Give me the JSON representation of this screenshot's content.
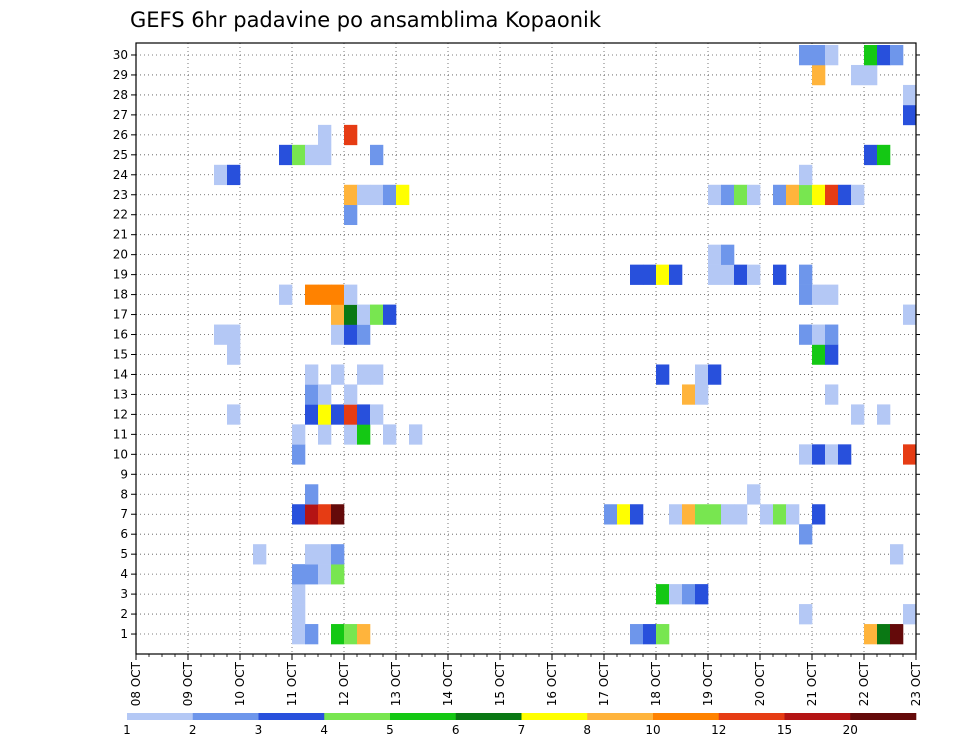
{
  "chart_data": {
    "type": "heatmap",
    "title": "GEFS 6hr padavine po ansamblima Kopaonik",
    "x_labels": [
      "08 OCT",
      "09 OCT",
      "10 OCT",
      "11 OCT",
      "12 OCT",
      "13 OCT",
      "14 OCT",
      "15 OCT",
      "16 OCT",
      "17 OCT",
      "18 OCT",
      "19 OCT",
      "20 OCT",
      "21 OCT",
      "22 OCT",
      "23 OCT"
    ],
    "x_range_hours": [
      0,
      360
    ],
    "step_hours": 6,
    "y_labels": [
      "1",
      "2",
      "3",
      "4",
      "5",
      "6",
      "7",
      "8",
      "9",
      "10",
      "11",
      "12",
      "13",
      "14",
      "15",
      "16",
      "17",
      "18",
      "19",
      "20",
      "21",
      "22",
      "23",
      "24",
      "25",
      "26",
      "27",
      "28",
      "29",
      "30"
    ],
    "colorbar": {
      "ticks": [
        "1",
        "2",
        "3",
        "4",
        "5",
        "6",
        "7",
        "8",
        "10",
        "12",
        "15",
        "20"
      ],
      "colors": [
        "#b4c8f5",
        "#6e96eb",
        "#2850dc",
        "#78e650",
        "#14c814",
        "#0a7814",
        "#ffff00",
        "#ffb43c",
        "#ff8200",
        "#e63c14",
        "#b41414",
        "#640a0a"
      ]
    },
    "levels_meaning": "level index 1..12 maps to colorbar colors",
    "cells": [
      [
        12,
        1,
        1
      ],
      [
        13,
        1,
        2
      ],
      [
        15,
        1,
        5
      ],
      [
        16,
        1,
        4
      ],
      [
        17,
        1,
        8
      ],
      [
        38,
        1,
        2
      ],
      [
        39,
        1,
        3
      ],
      [
        40,
        1,
        4
      ],
      [
        56,
        1,
        8
      ],
      [
        57,
        1,
        6
      ],
      [
        58,
        1,
        12
      ],
      [
        12,
        2,
        1
      ],
      [
        51,
        2,
        1
      ],
      [
        59,
        2,
        1
      ],
      [
        40,
        3,
        5
      ],
      [
        41,
        3,
        1
      ],
      [
        42,
        3,
        2
      ],
      [
        43,
        3,
        3
      ],
      [
        12,
        3,
        1
      ],
      [
        12,
        4,
        2
      ],
      [
        13,
        4,
        2
      ],
      [
        14,
        4,
        1
      ],
      [
        15,
        4,
        4
      ],
      [
        9,
        5,
        1
      ],
      [
        13,
        5,
        1
      ],
      [
        14,
        5,
        1
      ],
      [
        15,
        5,
        2
      ],
      [
        58,
        5,
        1
      ],
      [
        51,
        6,
        2
      ],
      [
        12,
        7,
        3
      ],
      [
        13,
        7,
        11
      ],
      [
        14,
        7,
        10
      ],
      [
        15,
        7,
        12
      ],
      [
        36,
        7,
        2
      ],
      [
        37,
        7,
        7
      ],
      [
        38,
        7,
        3
      ],
      [
        41,
        7,
        1
      ],
      [
        42,
        7,
        8
      ],
      [
        43,
        7,
        4
      ],
      [
        44,
        7,
        4
      ],
      [
        45,
        7,
        1
      ],
      [
        46,
        7,
        1
      ],
      [
        48,
        7,
        1
      ],
      [
        49,
        7,
        4
      ],
      [
        50,
        7,
        1
      ],
      [
        52,
        7,
        3
      ],
      [
        13,
        8,
        2
      ],
      [
        47,
        8,
        1
      ],
      [
        12,
        10,
        2
      ],
      [
        51,
        10,
        1
      ],
      [
        52,
        10,
        3
      ],
      [
        53,
        10,
        1
      ],
      [
        54,
        10,
        3
      ],
      [
        59,
        10,
        10
      ],
      [
        12,
        11,
        1
      ],
      [
        14,
        11,
        1
      ],
      [
        16,
        11,
        1
      ],
      [
        17,
        11,
        5
      ],
      [
        19,
        11,
        1
      ],
      [
        21,
        11,
        1
      ],
      [
        7,
        12,
        1
      ],
      [
        13,
        12,
        3
      ],
      [
        14,
        12,
        7
      ],
      [
        15,
        12,
        3
      ],
      [
        16,
        12,
        10
      ],
      [
        17,
        12,
        3
      ],
      [
        18,
        12,
        1
      ],
      [
        55,
        12,
        1
      ],
      [
        57,
        12,
        1
      ],
      [
        13,
        13,
        2
      ],
      [
        14,
        13,
        1
      ],
      [
        16,
        13,
        1
      ],
      [
        42,
        13,
        8
      ],
      [
        43,
        13,
        1
      ],
      [
        53,
        13,
        1
      ],
      [
        13,
        14,
        1
      ],
      [
        15,
        14,
        1
      ],
      [
        17,
        14,
        1
      ],
      [
        18,
        14,
        1
      ],
      [
        40,
        14,
        3
      ],
      [
        43,
        14,
        1
      ],
      [
        44,
        14,
        3
      ],
      [
        7,
        15,
        1
      ],
      [
        52,
        15,
        5
      ],
      [
        53,
        15,
        3
      ],
      [
        6,
        16,
        1
      ],
      [
        7,
        16,
        1
      ],
      [
        15,
        16,
        1
      ],
      [
        16,
        16,
        3
      ],
      [
        17,
        16,
        2
      ],
      [
        51,
        16,
        2
      ],
      [
        52,
        16,
        1
      ],
      [
        53,
        16,
        2
      ],
      [
        15,
        17,
        8
      ],
      [
        16,
        17,
        6
      ],
      [
        17,
        17,
        1
      ],
      [
        18,
        17,
        4
      ],
      [
        19,
        17,
        3
      ],
      [
        59,
        17,
        1
      ],
      [
        11,
        18,
        1
      ],
      [
        13,
        18,
        9
      ],
      [
        14,
        18,
        9
      ],
      [
        15,
        18,
        9
      ],
      [
        16,
        18,
        1
      ],
      [
        51,
        18,
        2
      ],
      [
        52,
        18,
        1
      ],
      [
        53,
        18,
        1
      ],
      [
        38,
        19,
        3
      ],
      [
        39,
        19,
        3
      ],
      [
        40,
        19,
        7
      ],
      [
        41,
        19,
        3
      ],
      [
        44,
        19,
        1
      ],
      [
        45,
        19,
        1
      ],
      [
        46,
        19,
        3
      ],
      [
        47,
        19,
        1
      ],
      [
        49,
        19,
        3
      ],
      [
        51,
        19,
        2
      ],
      [
        44,
        20,
        1
      ],
      [
        45,
        20,
        2
      ],
      [
        16,
        22,
        2
      ],
      [
        16,
        23,
        8
      ],
      [
        17,
        23,
        1
      ],
      [
        18,
        23,
        1
      ],
      [
        19,
        23,
        2
      ],
      [
        20,
        23,
        7
      ],
      [
        44,
        23,
        1
      ],
      [
        45,
        23,
        2
      ],
      [
        46,
        23,
        4
      ],
      [
        47,
        23,
        1
      ],
      [
        49,
        23,
        2
      ],
      [
        50,
        23,
        8
      ],
      [
        51,
        23,
        4
      ],
      [
        52,
        23,
        7
      ],
      [
        53,
        23,
        10
      ],
      [
        54,
        23,
        3
      ],
      [
        55,
        23,
        1
      ],
      [
        6,
        24,
        1
      ],
      [
        7,
        24,
        3
      ],
      [
        51,
        24,
        1
      ],
      [
        11,
        25,
        3
      ],
      [
        12,
        25,
        4
      ],
      [
        13,
        25,
        1
      ],
      [
        14,
        25,
        1
      ],
      [
        18,
        25,
        2
      ],
      [
        56,
        25,
        3
      ],
      [
        57,
        25,
        5
      ],
      [
        14,
        26,
        1
      ],
      [
        16,
        26,
        10
      ],
      [
        59,
        27,
        3
      ],
      [
        59,
        28,
        1
      ],
      [
        52,
        29,
        8
      ],
      [
        55,
        29,
        1
      ],
      [
        56,
        29,
        1
      ],
      [
        51,
        30,
        2
      ],
      [
        52,
        30,
        2
      ],
      [
        53,
        30,
        1
      ],
      [
        56,
        30,
        5
      ],
      [
        57,
        30,
        3
      ],
      [
        58,
        30,
        2
      ]
    ]
  }
}
